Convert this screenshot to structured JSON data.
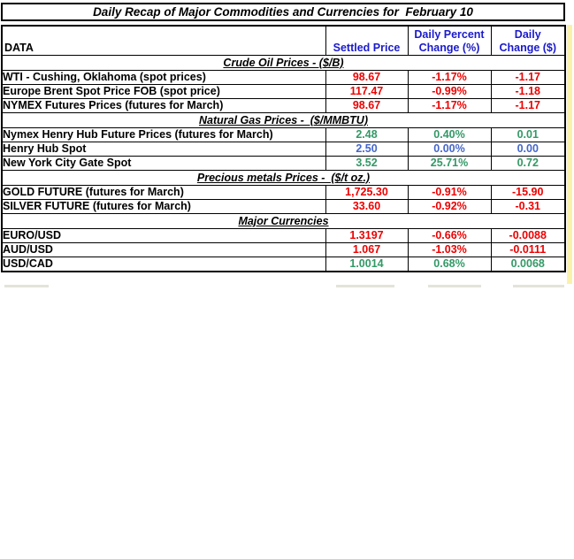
{
  "chart_data": {
    "type": "table",
    "title": "Daily Recap of Major Commodities and Currencies for  February 10",
    "columns": [
      "DATA",
      "Settled Price",
      "Daily Percent Change (%)",
      "Daily Change ($)"
    ],
    "column_labels_wrapped": [
      "DATA",
      "Settled Price",
      "Daily Percent\nChange (%)",
      "Daily\nChange ($)"
    ],
    "sections": [
      {
        "label": "Crude Oil Prices - ($/B)",
        "rows": [
          {
            "name": "WTI - Cushing, Oklahoma (spot prices)",
            "settled_price": "98.67",
            "daily_percent_change": "-1.17%",
            "daily_change": "-1.17",
            "trend": "down"
          },
          {
            "name": "Europe Brent Spot Price FOB (spot price)",
            "settled_price": "117.47",
            "daily_percent_change": "-0.99%",
            "daily_change": "-1.18",
            "trend": "down"
          },
          {
            "name": "NYMEX Futures Prices (futures for March)",
            "settled_price": "98.67",
            "daily_percent_change": "-1.17%",
            "daily_change": "-1.17",
            "trend": "down"
          }
        ]
      },
      {
        "label": "Natural Gas Prices -  ($/MMBTU)",
        "rows": [
          {
            "name": "Nymex Henry Hub Future Prices (futures for March)",
            "settled_price": "2.48",
            "daily_percent_change": "0.40%",
            "daily_change": "0.01",
            "trend": "up"
          },
          {
            "name": "Henry Hub Spot",
            "settled_price": "2.50",
            "daily_percent_change": "0.00%",
            "daily_change": "0.00",
            "trend": "flat"
          },
          {
            "name": "New York City Gate Spot",
            "settled_price": "3.52",
            "daily_percent_change": "25.71%",
            "daily_change": "0.72",
            "trend": "up"
          }
        ]
      },
      {
        "label": "Precious metals Prices -  ($/t oz.)",
        "rows": [
          {
            "name": "GOLD FUTURE (futures for March)",
            "settled_price": "1,725.30",
            "daily_percent_change": "-0.91%",
            "daily_change": "-15.90",
            "trend": "down"
          },
          {
            "name": "SILVER FUTURE (futures for March)",
            "settled_price": "33.60",
            "daily_percent_change": "-0.92%",
            "daily_change": "-0.31",
            "trend": "down"
          }
        ]
      },
      {
        "label": "Major Currencies",
        "rows": [
          {
            "name": "EURO/USD",
            "settled_price": "1.3197",
            "daily_percent_change": "-0.66%",
            "daily_change": "-0.0088",
            "trend": "down"
          },
          {
            "name": "AUD/USD",
            "settled_price": "1.067",
            "daily_percent_change": "-1.03%",
            "daily_change": "-0.0111",
            "trend": "down"
          },
          {
            "name": "USD/CAD",
            "settled_price": "1.0014",
            "daily_percent_change": "0.68%",
            "daily_change": "0.0068",
            "trend": "up"
          }
        ]
      }
    ],
    "colors": {
      "down": "#ee0000",
      "up": "#339966",
      "flat": "#4466cc",
      "header_text": "#1a1acc",
      "border": "#000000",
      "side_strip": "#faf2ab"
    },
    "layout": {
      "legend": "none",
      "grid": "full black cell borders",
      "value_columns_aligned": "center"
    }
  }
}
